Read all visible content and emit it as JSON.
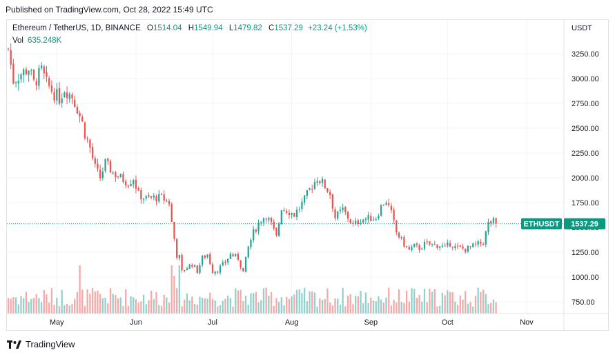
{
  "header": {
    "published": "Published on TradingView.com, Oct 28, 2022 15:49 UTC"
  },
  "legend": {
    "symbol": "Ethereum / TetherUS, 1D, BINANCE",
    "open_label": "O",
    "open": "1514.04",
    "high_label": "H",
    "high": "1549.94",
    "low_label": "L",
    "low": "1479.82",
    "close_label": "C",
    "close": "1537.29",
    "change": "+23.24 (+1.53%)",
    "vol_label": "Vol",
    "vol": "635.248K"
  },
  "price_axis": {
    "currency": "USDT"
  },
  "last_price": {
    "symbol": "ETHUSDT",
    "value": "1537.29"
  },
  "footer": {
    "brand": "TradingView"
  },
  "colors": {
    "up": "#26a69a",
    "down": "#ef5350",
    "up_volume": "#26a69a80",
    "down_volume": "#ef535080",
    "label_bg": "#089981"
  },
  "chart_data": {
    "type": "candlestick",
    "title": "Ethereum / TetherUS, 1D, BINANCE",
    "y_ticks": [
      3250,
      3000,
      2750,
      2500,
      2250,
      2000,
      1750,
      1500,
      1250,
      1000,
      750
    ],
    "y_tick_labels": [
      "3250.00",
      "3000.00",
      "2750.00",
      "2500.00",
      "2250.00",
      "2000.00",
      "1750.00",
      "1500.00",
      "1250.00",
      "1000.00",
      "750.00"
    ],
    "ylim": [
      650,
      3400
    ],
    "x_labels": [
      {
        "label": "May",
        "day": 19
      },
      {
        "label": "Jun",
        "day": 50
      },
      {
        "label": "Jul",
        "day": 80
      },
      {
        "label": "Aug",
        "day": 111
      },
      {
        "label": "Sep",
        "day": 142
      },
      {
        "label": "Oct",
        "day": 172
      },
      {
        "label": "Nov",
        "day": 203
      }
    ],
    "xlim": [
      0,
      203
    ],
    "last_price": 1537.29,
    "close_path": [
      [
        0,
        3300
      ],
      [
        2,
        2980
      ],
      [
        5,
        3050
      ],
      [
        8,
        3100
      ],
      [
        10,
        2950
      ],
      [
        13,
        3080
      ],
      [
        15,
        2950
      ],
      [
        18,
        2850
      ],
      [
        20,
        2800
      ],
      [
        22,
        2900
      ],
      [
        25,
        2820
      ],
      [
        27,
        2700
      ],
      [
        29,
        2550
      ],
      [
        30,
        2450
      ],
      [
        32,
        2300
      ],
      [
        34,
        2100
      ],
      [
        36,
        2000
      ],
      [
        38,
        2150
      ],
      [
        41,
        2050
      ],
      [
        44,
        2000
      ],
      [
        47,
        1950
      ],
      [
        49,
        2000
      ],
      [
        51,
        1830
      ],
      [
        54,
        1790
      ],
      [
        57,
        1800
      ],
      [
        60,
        1800
      ],
      [
        63,
        1750
      ],
      [
        64,
        1550
      ],
      [
        66,
        1220
      ],
      [
        67,
        1200
      ],
      [
        68,
        1050
      ],
      [
        70,
        1100
      ],
      [
        72,
        1130
      ],
      [
        74,
        1060
      ],
      [
        76,
        1190
      ],
      [
        78,
        1230
      ],
      [
        80,
        1060
      ],
      [
        82,
        1070
      ],
      [
        85,
        1150
      ],
      [
        87,
        1230
      ],
      [
        90,
        1190
      ],
      [
        92,
        1050
      ],
      [
        94,
        1300
      ],
      [
        96,
        1450
      ],
      [
        99,
        1580
      ],
      [
        101,
        1620
      ],
      [
        103,
        1530
      ],
      [
        105,
        1400
      ],
      [
        107,
        1700
      ],
      [
        110,
        1660
      ],
      [
        112,
        1630
      ],
      [
        114,
        1700
      ],
      [
        116,
        1780
      ],
      [
        118,
        1880
      ],
      [
        121,
        2000
      ],
      [
        123,
        1950
      ],
      [
        125,
        1880
      ],
      [
        126,
        1840
      ],
      [
        128,
        1600
      ],
      [
        131,
        1680
      ],
      [
        133,
        1600
      ],
      [
        135,
        1520
      ],
      [
        138,
        1580
      ],
      [
        141,
        1590
      ],
      [
        144,
        1600
      ],
      [
        146,
        1710
      ],
      [
        148,
        1770
      ],
      [
        150,
        1640
      ],
      [
        152,
        1450
      ],
      [
        155,
        1330
      ],
      [
        157,
        1270
      ],
      [
        159,
        1310
      ],
      [
        161,
        1290
      ],
      [
        163,
        1330
      ],
      [
        165,
        1330
      ],
      [
        167,
        1320
      ],
      [
        169,
        1320
      ],
      [
        171,
        1290
      ],
      [
        173,
        1340
      ],
      [
        175,
        1300
      ],
      [
        177,
        1290
      ],
      [
        179,
        1280
      ],
      [
        181,
        1300
      ],
      [
        183,
        1320
      ],
      [
        186,
        1350
      ],
      [
        188,
        1540
      ],
      [
        190,
        1560
      ],
      [
        191,
        1537
      ]
    ],
    "volume_scale": {
      "max_label": "",
      "note_free": true
    }
  }
}
